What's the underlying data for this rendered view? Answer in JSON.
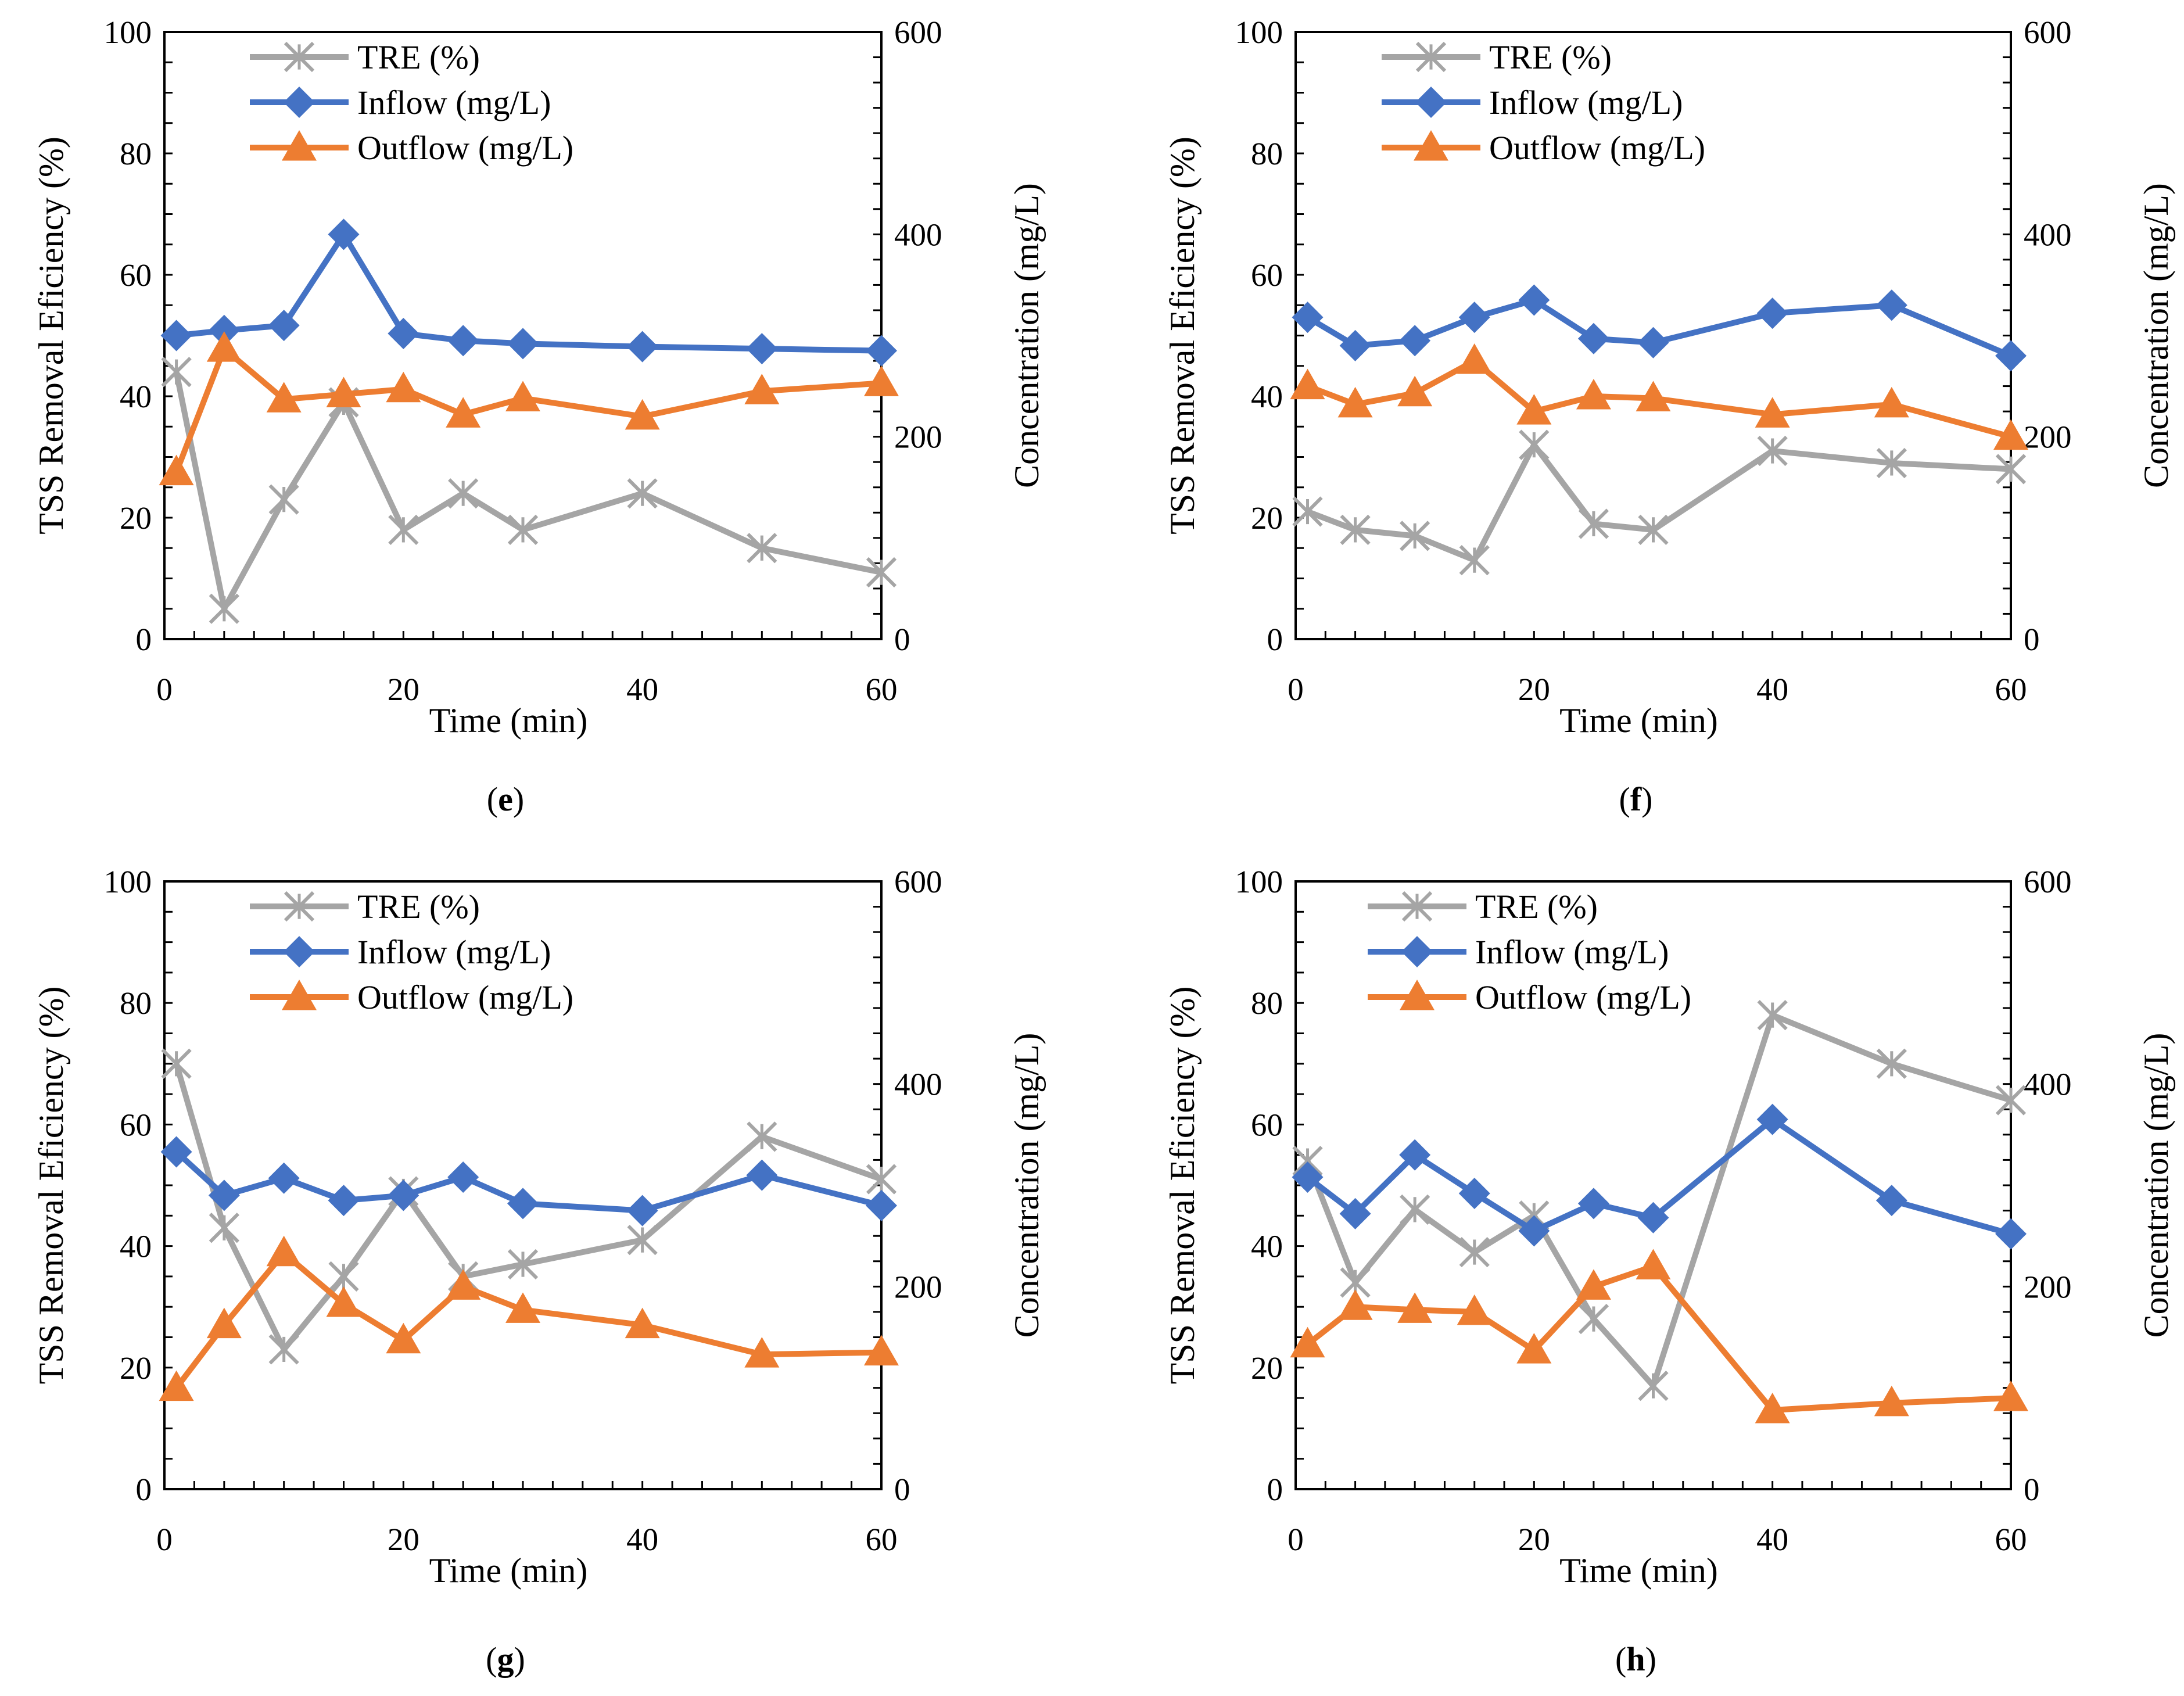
{
  "colors": {
    "tre": "#A5A5A5",
    "inflow": "#4472C4",
    "outflow": "#ED7D31",
    "axis": "#000000"
  },
  "legend": {
    "tre": "TRE (%)",
    "inflow": "Inflow (mg/L)",
    "outflow": "Outflow (mg/L)"
  },
  "axes": {
    "x_title": "Time (min)",
    "y_left_title": "TSS Removal Eficiency (%)",
    "y_right_title": "Concentration (mg/L)",
    "x_ticks": [
      "0",
      "20",
      "40",
      "60"
    ],
    "y_left_ticks": [
      "0",
      "20",
      "40",
      "60",
      "80",
      "100"
    ],
    "y_right_ticks": [
      "0",
      "200",
      "400",
      "600"
    ]
  },
  "chart_data": [
    {
      "type": "line",
      "panel": "e",
      "x": [
        1,
        5,
        10,
        15,
        20,
        25,
        30,
        40,
        50,
        60
      ],
      "xlim": [
        0,
        60
      ],
      "ylim_left": [
        0,
        100
      ],
      "ylim_right": [
        0,
        600
      ],
      "series": [
        {
          "name": "TRE (%)",
          "axis": "left",
          "values": [
            44,
            5,
            23,
            39,
            18,
            24,
            18,
            24,
            15,
            11
          ]
        },
        {
          "name": "Inflow (mg/L)",
          "axis": "right",
          "values": [
            300,
            305,
            310,
            400,
            302,
            295,
            292,
            289,
            287,
            285
          ]
        },
        {
          "name": "Outflow (mg/L)",
          "axis": "right",
          "values": [
            165,
            287,
            237,
            242,
            247,
            222,
            238,
            220,
            245,
            253
          ]
        }
      ]
    },
    {
      "type": "line",
      "panel": "f",
      "x": [
        1,
        5,
        10,
        15,
        20,
        25,
        30,
        40,
        50,
        60
      ],
      "xlim": [
        0,
        60
      ],
      "ylim_left": [
        0,
        100
      ],
      "ylim_right": [
        0,
        600
      ],
      "series": [
        {
          "name": "TRE (%)",
          "axis": "left",
          "values": [
            21,
            18,
            17,
            13,
            32,
            19,
            18,
            31,
            29,
            28
          ]
        },
        {
          "name": "Inflow (mg/L)",
          "axis": "right",
          "values": [
            318,
            290,
            295,
            318,
            335,
            297,
            293,
            322,
            330,
            280
          ]
        },
        {
          "name": "Outflow (mg/L)",
          "axis": "right",
          "values": [
            250,
            232,
            243,
            275,
            225,
            240,
            238,
            222,
            232,
            200
          ]
        }
      ]
    },
    {
      "type": "line",
      "panel": "g",
      "x": [
        1,
        5,
        10,
        15,
        20,
        25,
        30,
        40,
        50,
        60
      ],
      "xlim": [
        0,
        60
      ],
      "ylim_left": [
        0,
        100
      ],
      "ylim_right": [
        0,
        600
      ],
      "series": [
        {
          "name": "TRE (%)",
          "axis": "left",
          "values": [
            70,
            43,
            23,
            35,
            49,
            35,
            37,
            41,
            58,
            51
          ]
        },
        {
          "name": "Inflow (mg/L)",
          "axis": "right",
          "values": [
            333,
            290,
            307,
            285,
            290,
            308,
            282,
            275,
            310,
            280
          ]
        },
        {
          "name": "Outflow (mg/L)",
          "axis": "right",
          "values": [
            100,
            162,
            233,
            183,
            147,
            200,
            177,
            162,
            133,
            135
          ]
        }
      ]
    },
    {
      "type": "line",
      "panel": "h",
      "x": [
        1,
        5,
        10,
        15,
        20,
        25,
        30,
        40,
        50,
        60
      ],
      "xlim": [
        0,
        60
      ],
      "ylim_left": [
        0,
        100
      ],
      "ylim_right": [
        0,
        600
      ],
      "series": [
        {
          "name": "TRE (%)",
          "axis": "left",
          "values": [
            54,
            34,
            46,
            39,
            45,
            28,
            17,
            78,
            70,
            64
          ]
        },
        {
          "name": "Inflow (mg/L)",
          "axis": "right",
          "values": [
            308,
            272,
            330,
            292,
            255,
            282,
            268,
            365,
            285,
            252
          ]
        },
        {
          "name": "Outflow (mg/L)",
          "axis": "right",
          "values": [
            143,
            180,
            177,
            175,
            137,
            200,
            220,
            78,
            85,
            90
          ]
        }
      ]
    }
  ]
}
